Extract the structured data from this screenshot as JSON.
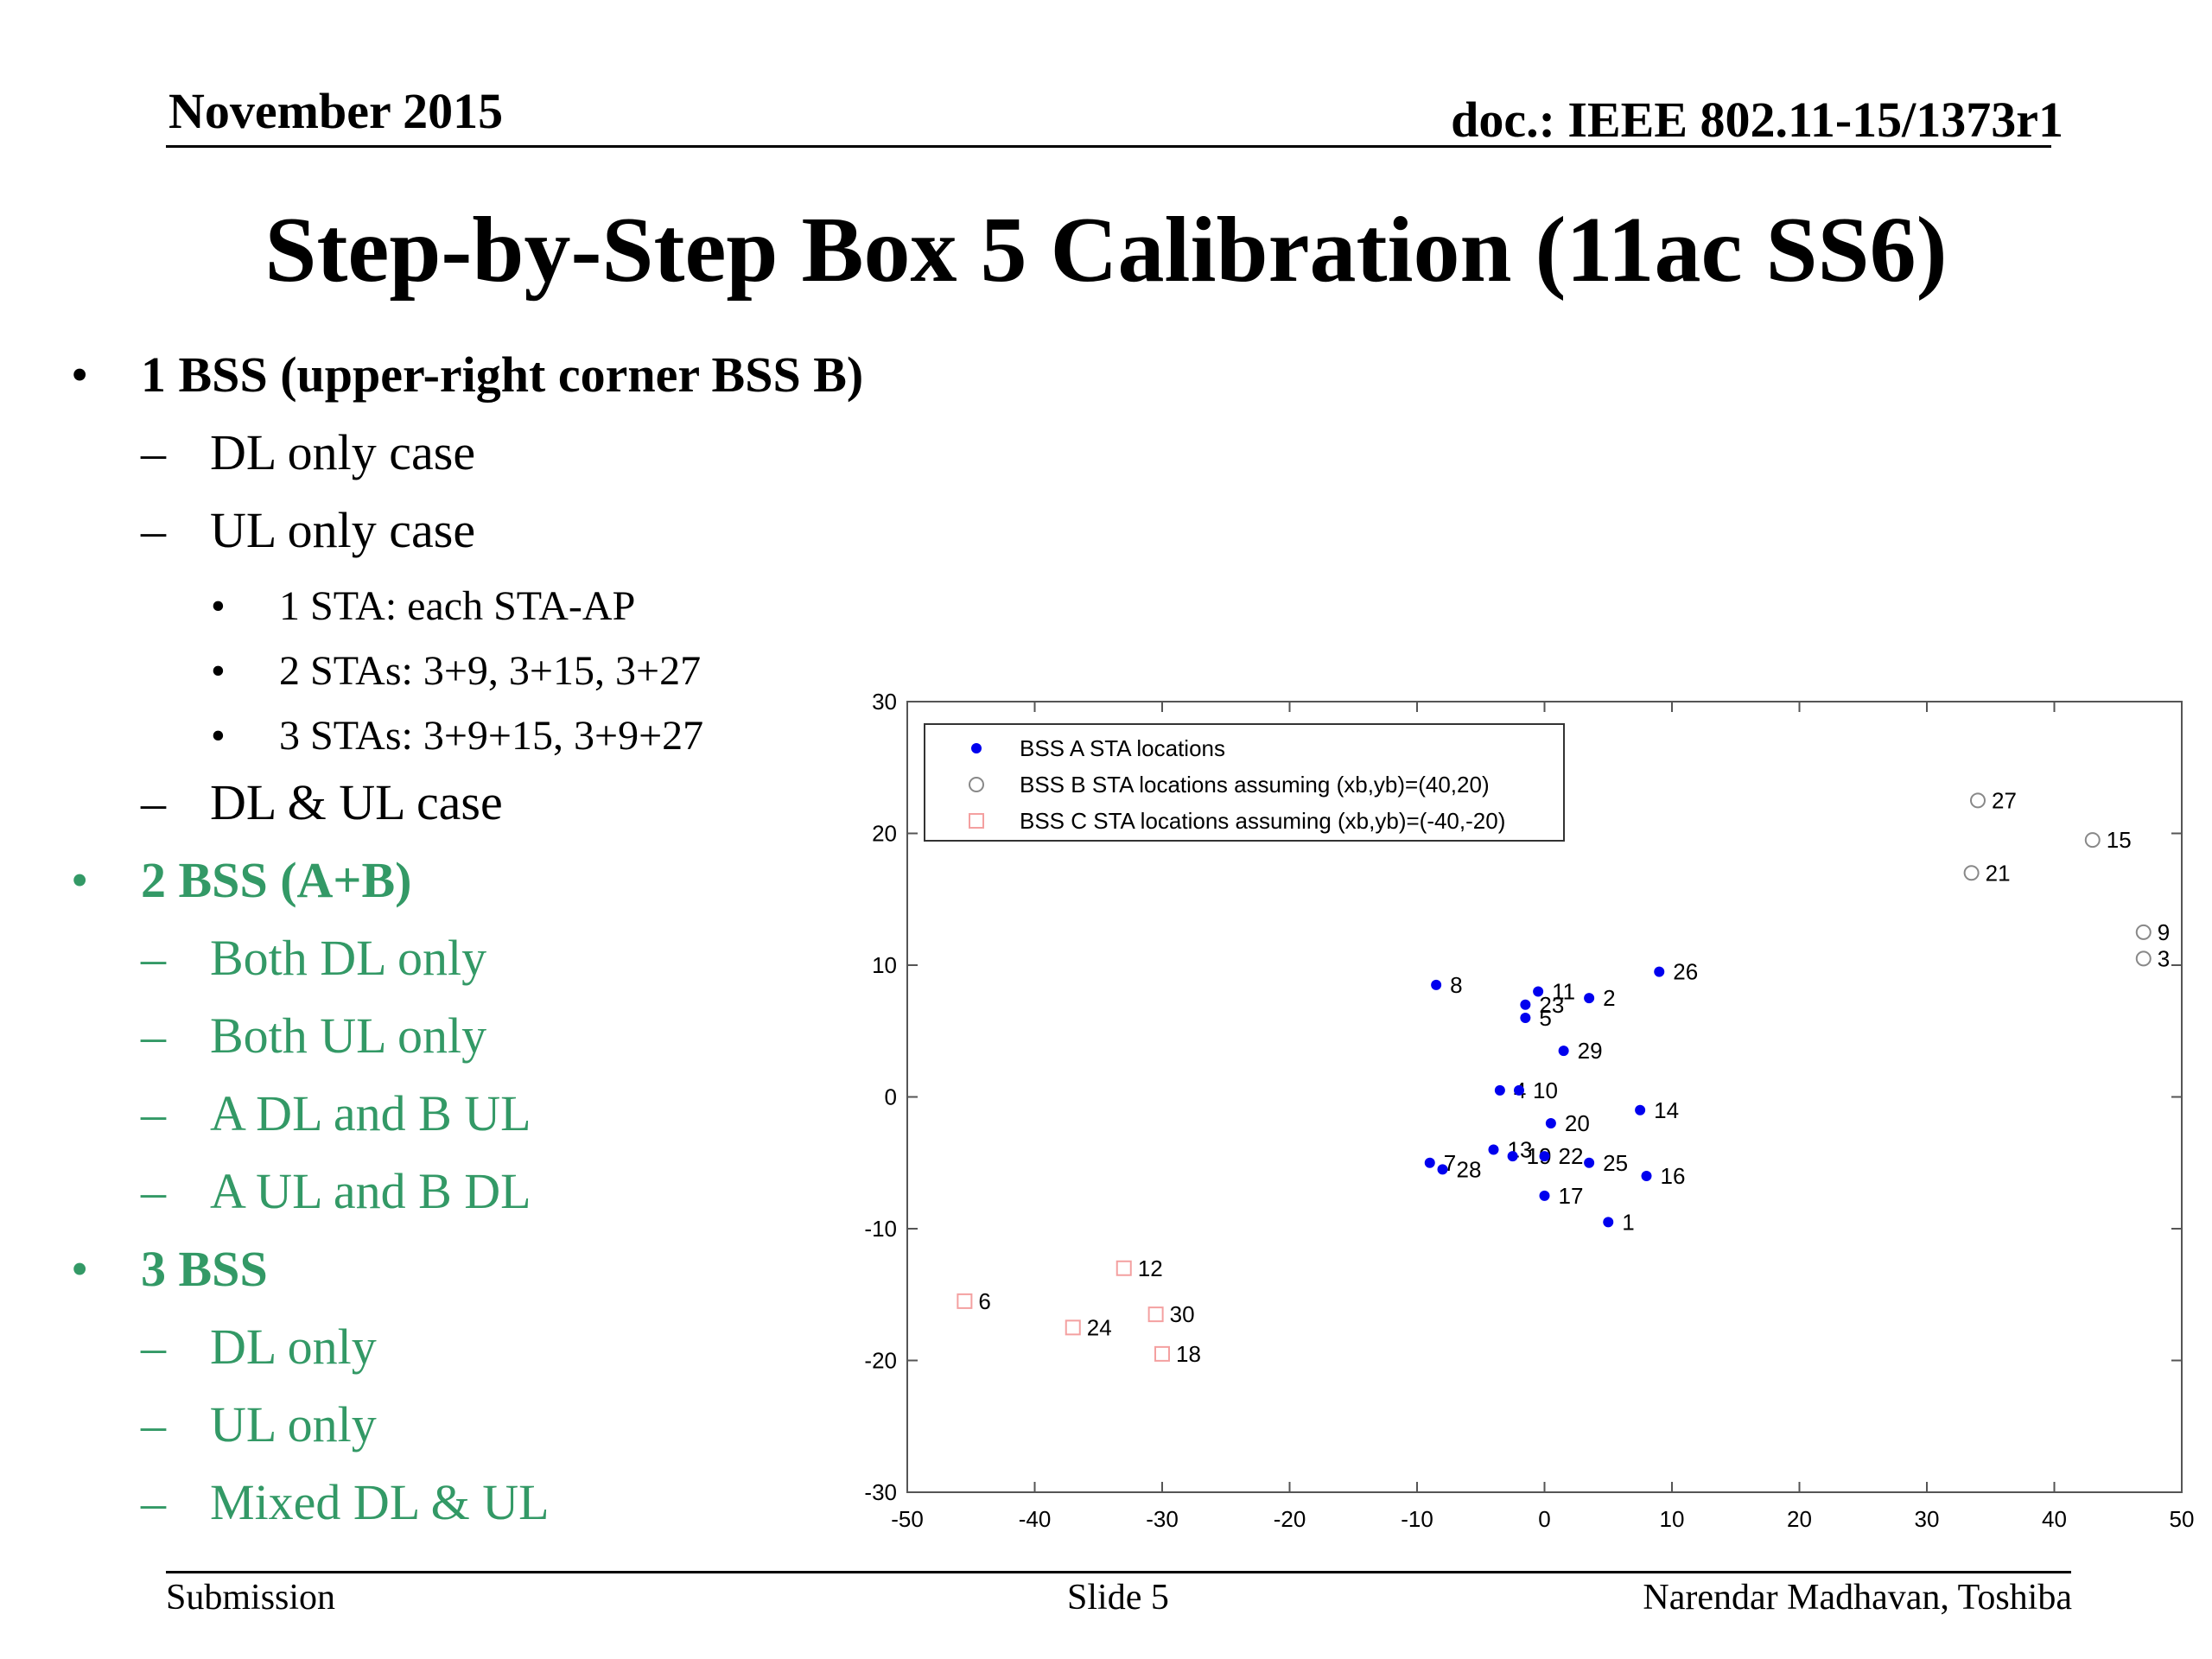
{
  "header": {
    "date": "November 2015",
    "doc": "doc.: IEEE 802.11-15/1373r1"
  },
  "title": "Step-by-Step Box 5 Calibration (11ac SS6)",
  "bullets": [
    {
      "level": 1,
      "marker": "•",
      "text": "1 BSS (upper-right corner BSS B)",
      "color": "#000000",
      "bold": true
    },
    {
      "level": 2,
      "marker": "–",
      "text": "DL only case",
      "color": "#000000"
    },
    {
      "level": 2,
      "marker": "–",
      "text": "UL only case",
      "color": "#000000"
    },
    {
      "level": 3,
      "marker": "•",
      "text": "1 STA: each STA-AP",
      "color": "#000000"
    },
    {
      "level": 3,
      "marker": "•",
      "text": "2 STAs: 3+9, 3+15, 3+27",
      "color": "#000000"
    },
    {
      "level": 3,
      "marker": "•",
      "text": "3 STAs: 3+9+15, 3+9+27",
      "color": "#000000"
    },
    {
      "level": 2,
      "marker": "–",
      "text": "DL & UL case",
      "color": "#000000"
    },
    {
      "level": 1,
      "marker": "•",
      "text": "2 BSS (A+B)",
      "color": "#339966",
      "bold": true
    },
    {
      "level": 2,
      "marker": "–",
      "text": "Both DL only",
      "color": "#339966"
    },
    {
      "level": 2,
      "marker": "–",
      "text": "Both UL only",
      "color": "#339966"
    },
    {
      "level": 2,
      "marker": "–",
      "text": "A DL and B UL",
      "color": "#339966"
    },
    {
      "level": 2,
      "marker": "–",
      "text": "A UL and B DL",
      "color": "#339966"
    },
    {
      "level": 1,
      "marker": "•",
      "text": "3 BSS",
      "color": "#339966",
      "bold": true
    },
    {
      "level": 2,
      "marker": "–",
      "text": "DL only",
      "color": "#339966"
    },
    {
      "level": 2,
      "marker": "–",
      "text": "UL only",
      "color": "#339966"
    },
    {
      "level": 2,
      "marker": "–",
      "text": "Mixed DL & UL",
      "color": "#339966"
    }
  ],
  "chart_data": {
    "type": "scatter",
    "xlim": [
      -50,
      50
    ],
    "ylim": [
      -30,
      30
    ],
    "xticks": [
      "-50",
      "-40",
      "-30",
      "-20",
      "-10",
      "0",
      "10",
      "20",
      "30",
      "40",
      "50"
    ],
    "yticks": [
      "30",
      "20",
      "10",
      "0",
      "-10",
      "-20",
      "-30"
    ],
    "legend_position": "top-left",
    "grid": false,
    "series": [
      {
        "name": "BSS A STA locations",
        "marker": "dot",
        "color": "#0000ee",
        "points": [
          {
            "label": "1",
            "x": 5,
            "y": -9.5
          },
          {
            "label": "2",
            "x": 3.5,
            "y": 7.5
          },
          {
            "label": "4",
            "x": -3.5,
            "y": 0.5
          },
          {
            "label": "5",
            "x": -1.5,
            "y": 6
          },
          {
            "label": "7",
            "x": -9,
            "y": -5
          },
          {
            "label": "8",
            "x": -8.5,
            "y": 8.5
          },
          {
            "label": "10",
            "x": -2,
            "y": 0.5
          },
          {
            "label": "11",
            "x": -0.5,
            "y": 8
          },
          {
            "label": "13",
            "x": -4,
            "y": -4
          },
          {
            "label": "14",
            "x": 7.5,
            "y": -1
          },
          {
            "label": "16",
            "x": 8,
            "y": -6
          },
          {
            "label": "17",
            "x": 0,
            "y": -7.5
          },
          {
            "label": "19",
            "x": -2.5,
            "y": -4.5
          },
          {
            "label": "20",
            "x": 0.5,
            "y": -2
          },
          {
            "label": "22",
            "x": 0,
            "y": -4.5
          },
          {
            "label": "23",
            "x": -1.5,
            "y": 7
          },
          {
            "label": "25",
            "x": 3.5,
            "y": -5
          },
          {
            "label": "26",
            "x": 9,
            "y": 9.5
          },
          {
            "label": "28",
            "x": -8,
            "y": -5.5
          },
          {
            "label": "29",
            "x": 1.5,
            "y": 3.5
          }
        ]
      },
      {
        "name": "BSS B STA locations assuming (xb,yb)=(40,20)",
        "marker": "circle",
        "color": "#888888",
        "points": [
          {
            "label": "3",
            "x": 47,
            "y": 10.5
          },
          {
            "label": "9",
            "x": 47,
            "y": 12.5
          },
          {
            "label": "15",
            "x": 43,
            "y": 19.5
          },
          {
            "label": "21",
            "x": 33.5,
            "y": 17
          },
          {
            "label": "27",
            "x": 34,
            "y": 22.5
          }
        ]
      },
      {
        "name": "BSS C STA locations assuming (xb,yb)=(-40,-20)",
        "marker": "square",
        "color": "#f4a0a0",
        "points": [
          {
            "label": "6",
            "x": -45.5,
            "y": -15.5
          },
          {
            "label": "12",
            "x": -33,
            "y": -13
          },
          {
            "label": "18",
            "x": -30,
            "y": -19.5
          },
          {
            "label": "24",
            "x": -37,
            "y": -17.5
          },
          {
            "label": "30",
            "x": -30.5,
            "y": -16.5
          }
        ]
      }
    ]
  },
  "footer": {
    "left": "Submission",
    "center": "Slide 5",
    "right": "Narendar Madhavan, Toshiba"
  }
}
